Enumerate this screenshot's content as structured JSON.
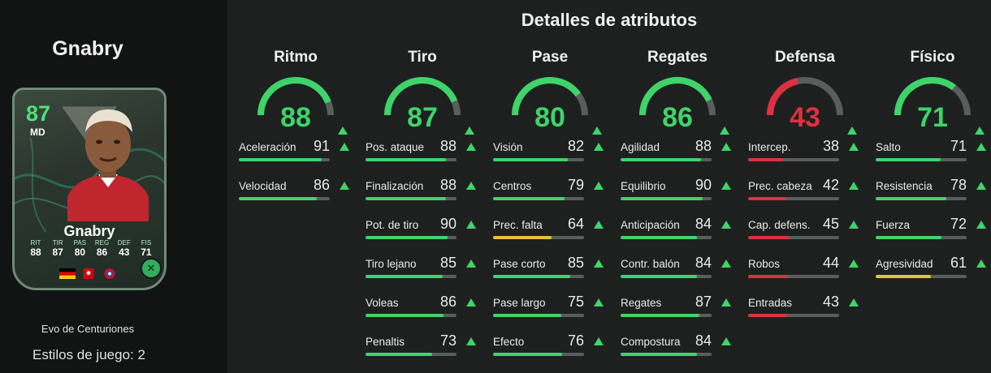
{
  "player": {
    "name": "Gnabry",
    "card": {
      "rating": "87",
      "position": "MD",
      "name": "Gnabry",
      "stats": [
        {
          "label": "RIT",
          "value": "88"
        },
        {
          "label": "TIR",
          "value": "87"
        },
        {
          "label": "PAS",
          "value": "80"
        },
        {
          "label": "REG",
          "value": "86"
        },
        {
          "label": "DEF",
          "value": "43"
        },
        {
          "label": "FIS",
          "value": "71"
        }
      ]
    },
    "evolution": "Evo de Centuriones",
    "playstyles": "Estilos de juego: 2"
  },
  "section_title": "Detalles de atributos",
  "colors": {
    "green": "#3ed46a",
    "yellow": "#e8c13a",
    "red": "#e0303f",
    "track": "#5a5d5d"
  },
  "categories": [
    {
      "title": "Ritmo",
      "value": 88,
      "level": "green",
      "attrs": [
        {
          "name": "Aceleración",
          "value": 91,
          "level": "green"
        },
        {
          "name": "Velocidad",
          "value": 86,
          "level": "green"
        }
      ]
    },
    {
      "title": "Tiro",
      "value": 87,
      "level": "green",
      "attrs": [
        {
          "name": "Pos. ataque",
          "value": 88,
          "level": "green"
        },
        {
          "name": "Finalización",
          "value": 88,
          "level": "green"
        },
        {
          "name": "Pot. de tiro",
          "value": 90,
          "level": "green"
        },
        {
          "name": "Tiro lejano",
          "value": 85,
          "level": "green"
        },
        {
          "name": "Voleas",
          "value": 86,
          "level": "green"
        },
        {
          "name": "Penaltis",
          "value": 73,
          "level": "green"
        }
      ]
    },
    {
      "title": "Pase",
      "value": 80,
      "level": "green",
      "attrs": [
        {
          "name": "Visión",
          "value": 82,
          "level": "green"
        },
        {
          "name": "Centros",
          "value": 79,
          "level": "green"
        },
        {
          "name": "Prec. falta",
          "value": 64,
          "level": "yellow"
        },
        {
          "name": "Pase corto",
          "value": 85,
          "level": "green"
        },
        {
          "name": "Pase largo",
          "value": 75,
          "level": "green"
        },
        {
          "name": "Efecto",
          "value": 76,
          "level": "green"
        }
      ]
    },
    {
      "title": "Regates",
      "value": 86,
      "level": "green",
      "attrs": [
        {
          "name": "Agilidad",
          "value": 88,
          "level": "green"
        },
        {
          "name": "Equilibrio",
          "value": 90,
          "level": "green"
        },
        {
          "name": "Anticipación",
          "value": 84,
          "level": "green"
        },
        {
          "name": "Contr. balón",
          "value": 84,
          "level": "green"
        },
        {
          "name": "Regates",
          "value": 87,
          "level": "green"
        },
        {
          "name": "Compostura",
          "value": 84,
          "level": "green"
        }
      ]
    },
    {
      "title": "Defensa",
      "value": 43,
      "level": "red",
      "attrs": [
        {
          "name": "Intercep.",
          "value": 38,
          "level": "red"
        },
        {
          "name": "Prec. cabeza",
          "value": 42,
          "level": "red"
        },
        {
          "name": "Cap. defens.",
          "value": 45,
          "level": "red"
        },
        {
          "name": "Robos",
          "value": 44,
          "level": "red"
        },
        {
          "name": "Entradas",
          "value": 43,
          "level": "red"
        }
      ]
    },
    {
      "title": "Físico",
      "value": 71,
      "level": "green",
      "attrs": [
        {
          "name": "Salto",
          "value": 71,
          "level": "green"
        },
        {
          "name": "Resistencia",
          "value": 78,
          "level": "green"
        },
        {
          "name": "Fuerza",
          "value": 72,
          "level": "green"
        },
        {
          "name": "Agresividad",
          "value": 61,
          "level": "yellow"
        }
      ]
    }
  ]
}
